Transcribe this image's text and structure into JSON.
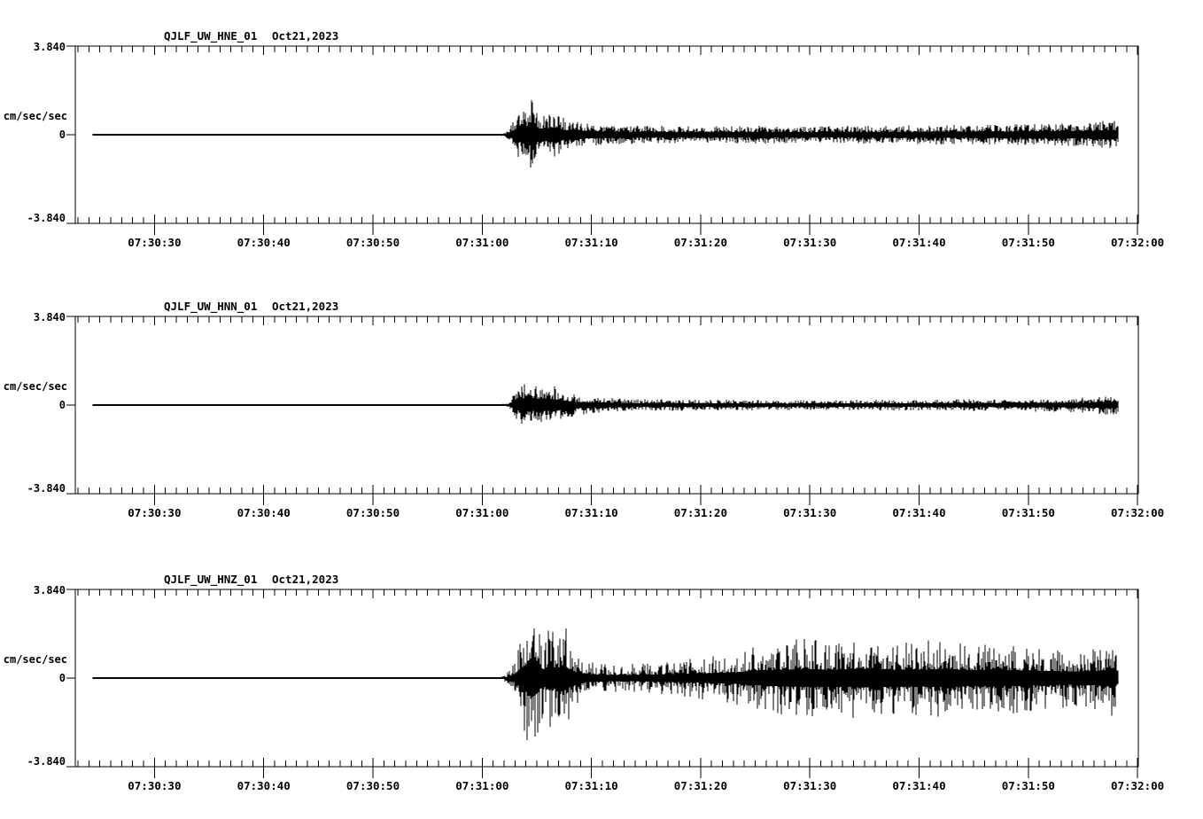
{
  "figure": {
    "background": "#ffffff",
    "ink": "#000000"
  },
  "chart_data": [
    {
      "type": "line",
      "kind": "seismogram-trace",
      "station": "QJLF_UW_HNE_01",
      "date": "Oct21,2023",
      "ylabel": "cm/sec/sec",
      "ylim": [
        -3.84,
        3.84
      ],
      "y_tick_labels": [
        "3.840",
        "0",
        "-3.840"
      ],
      "y_tick_values": [
        3.84,
        0,
        -3.84
      ],
      "x_axis": {
        "duration_s": 97.32,
        "minor_first_s": 0.25,
        "minor_step_s": 1,
        "major_first_s": 7.25,
        "major_step_s": 10,
        "major_labels": [
          "07:30:30",
          "07:30:40",
          "07:30:50",
          "07:31:00",
          "07:31:10",
          "07:31:20",
          "07:31:30",
          "07:31:40",
          "07:31:50",
          "07:32:00"
        ]
      },
      "trace": {
        "start_s": 1.6,
        "end_s": 95.5,
        "onset_s": 40.0,
        "peak_amp": 1.6,
        "seed": 101,
        "base_frac": 0.3,
        "spike_exp": 1.8,
        "envelope_t_s": [
          1.6,
          37.5,
          39.3,
          40.0,
          40.6,
          41.2,
          41.7,
          42.1,
          42.5,
          43.0,
          43.6,
          44.3,
          45.0,
          45.9,
          46.8,
          48.0,
          49.5,
          51.5,
          54.0,
          58.0,
          62.0,
          66.0,
          70.0,
          74.0,
          78.0,
          82.0,
          86.0,
          89.0,
          91.5,
          93.5,
          94.8,
          95.5
        ],
        "envelope_amp": [
          0.015,
          0.015,
          0.06,
          0.5,
          1.0,
          1.15,
          1.6,
          1.15,
          0.9,
          0.85,
          1.0,
          0.9,
          0.62,
          0.68,
          0.5,
          0.46,
          0.42,
          0.4,
          0.38,
          0.36,
          0.4,
          0.36,
          0.38,
          0.4,
          0.42,
          0.44,
          0.46,
          0.48,
          0.5,
          0.52,
          0.72,
          0.55
        ]
      }
    },
    {
      "type": "line",
      "kind": "seismogram-trace",
      "station": "QJLF_UW_HNN_01",
      "date": "Oct21,2023",
      "ylabel": "cm/sec/sec",
      "ylim": [
        -3.84,
        3.84
      ],
      "y_tick_labels": [
        "3.840",
        "0",
        "-3.840"
      ],
      "y_tick_values": [
        3.84,
        0,
        -3.84
      ],
      "x_axis": {
        "duration_s": 97.32,
        "minor_first_s": 0.25,
        "minor_step_s": 1,
        "major_first_s": 7.25,
        "major_step_s": 10,
        "major_labels": [
          "07:30:30",
          "07:30:40",
          "07:30:50",
          "07:31:00",
          "07:31:10",
          "07:31:20",
          "07:31:30",
          "07:31:40",
          "07:31:50",
          "07:32:00"
        ]
      },
      "trace": {
        "start_s": 1.6,
        "end_s": 95.5,
        "onset_s": 40.1,
        "peak_amp": 0.95,
        "seed": 202,
        "base_frac": 0.3,
        "spike_exp": 1.8,
        "envelope_t_s": [
          1.6,
          38.0,
          39.6,
          40.2,
          40.8,
          41.4,
          42.0,
          42.7,
          43.3,
          44.0,
          44.7,
          45.4,
          46.2,
          47.2,
          48.5,
          50.5,
          53.0,
          57.0,
          61.0,
          66.0,
          71.0,
          76.0,
          81.0,
          86.0,
          90.0,
          93.0,
          94.8,
          95.5
        ],
        "envelope_amp": [
          0.015,
          0.015,
          0.07,
          0.55,
          0.9,
          0.95,
          0.8,
          0.95,
          0.75,
          0.82,
          0.62,
          0.52,
          0.42,
          0.36,
          0.32,
          0.28,
          0.26,
          0.24,
          0.23,
          0.22,
          0.23,
          0.24,
          0.26,
          0.28,
          0.3,
          0.34,
          0.46,
          0.35
        ]
      }
    },
    {
      "type": "line",
      "kind": "seismogram-trace",
      "station": "QJLF_UW_HNZ_01",
      "date": "Oct21,2023",
      "ylabel": "cm/sec/sec",
      "ylim": [
        -3.84,
        3.84
      ],
      "y_tick_labels": [
        "3.840",
        "0",
        "-3.840"
      ],
      "y_tick_values": [
        3.84,
        0,
        -3.84
      ],
      "x_axis": {
        "duration_s": 97.32,
        "minor_first_s": 0.25,
        "minor_step_s": 1,
        "major_first_s": 7.25,
        "major_step_s": 10,
        "major_labels": [
          "07:30:30",
          "07:30:40",
          "07:30:50",
          "07:31:00",
          "07:31:10",
          "07:31:20",
          "07:31:30",
          "07:31:40",
          "07:31:50",
          "07:32:00"
        ]
      },
      "trace": {
        "start_s": 1.6,
        "end_s": 95.5,
        "onset_s": 39.7,
        "peak_amp": 3.75,
        "seed": 303,
        "base_frac": 0.22,
        "spike_exp": 2.5,
        "envelope_t_s": [
          1.6,
          37.5,
          39.0,
          39.7,
          40.3,
          40.8,
          41.3,
          41.7,
          42.1,
          42.5,
          43.0,
          43.5,
          44.1,
          44.7,
          45.4,
          46.2,
          47.2,
          48.5,
          50.0,
          52.0,
          54.5,
          57.0,
          59.5,
          62.0,
          64.5,
          67.0,
          69.5,
          72.0,
          74.5,
          77.0,
          79.5,
          82.0,
          84.5,
          87.0,
          89.5,
          91.5,
          93.2,
          94.4,
          95.1,
          95.5
        ],
        "envelope_amp": [
          0.018,
          0.018,
          0.07,
          0.28,
          0.95,
          1.9,
          2.7,
          3.75,
          3.4,
          2.2,
          1.6,
          2.4,
          1.9,
          2.5,
          1.5,
          1.0,
          0.78,
          0.62,
          0.6,
          0.66,
          0.75,
          0.9,
          1.05,
          1.35,
          1.6,
          1.75,
          1.6,
          1.85,
          1.7,
          1.6,
          1.8,
          1.55,
          1.65,
          1.45,
          1.35,
          1.3,
          1.4,
          1.5,
          2.0,
          1.0
        ]
      }
    }
  ]
}
